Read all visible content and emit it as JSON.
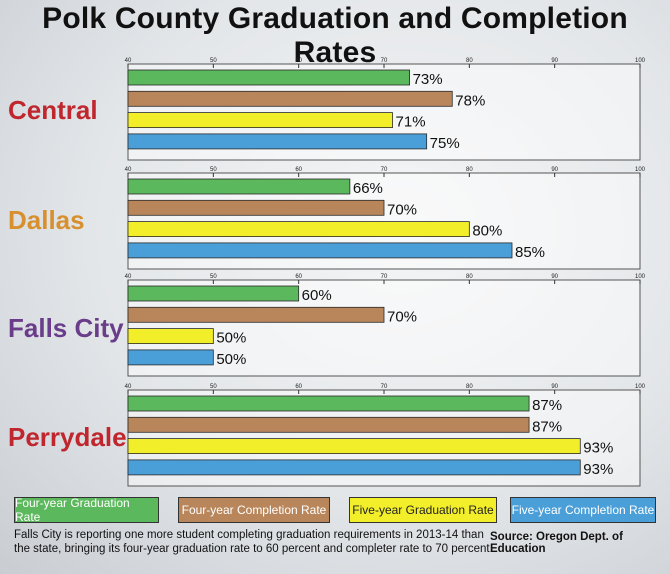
{
  "chart_data": {
    "type": "bar",
    "orientation": "horizontal",
    "title": "Polk County Graduation and Completion Rates",
    "xlim": [
      40,
      100
    ],
    "ticks": [
      40,
      50,
      60,
      70,
      80,
      90,
      100
    ],
    "groups": [
      "Central",
      "Dallas",
      "Falls City",
      "Perrydale"
    ],
    "group_colors": [
      "#c0262d",
      "#d8902e",
      "#6a3d8a",
      "#c0262d"
    ],
    "series": [
      {
        "name": "Four-year Graduation Rate",
        "color": "#5cb85c",
        "values": [
          73,
          66,
          60,
          87
        ],
        "labels": [
          "73%",
          "66%",
          "60%",
          "87%"
        ]
      },
      {
        "name": "Four-year Completion Rate",
        "color": "#b8865a",
        "values": [
          78,
          70,
          70,
          87
        ],
        "labels": [
          "78%",
          "70%",
          "70%",
          "87%"
        ]
      },
      {
        "name": "Five-year Graduation Rate",
        "color": "#f2ee2a",
        "values": [
          71,
          80,
          50,
          93
        ],
        "labels": [
          "71%",
          "80%",
          "50%",
          "93%"
        ]
      },
      {
        "name": "Five-year Completion Rate",
        "color": "#4a9fd8",
        "values": [
          75,
          85,
          50,
          93
        ],
        "labels": [
          "75%",
          "85%",
          "50%",
          "93%"
        ]
      }
    ],
    "legend_position": "bottom"
  },
  "footnote": "Falls City is reporting one more student completing graduation requirements in 2013-14 than the state, bringing its four-year graduation rate to 60 percent and completer rate to 70 percent.",
  "source": "Source: Oregon Dept. of Education"
}
